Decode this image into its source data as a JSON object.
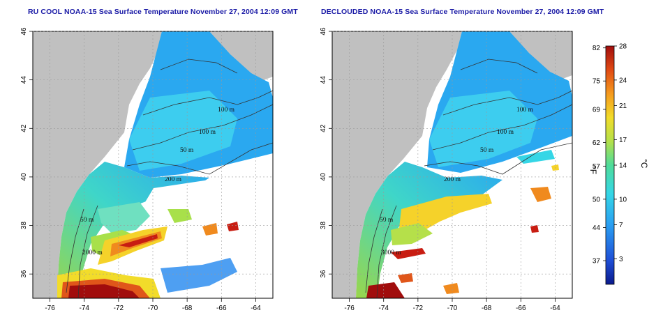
{
  "panels": [
    {
      "id": "left",
      "title": "RU COOL NOAA-15 Sea Surface Temperature November 27, 2004 12:09 GMT",
      "x_ticks": [
        "-76",
        "-74",
        "-72",
        "-70",
        "-68",
        "-66",
        "-64"
      ],
      "y_ticks": [
        "46",
        "44",
        "42",
        "40",
        "38",
        "36"
      ],
      "contour_labels": [
        "100 m",
        "100 m",
        "50 m",
        "200 m",
        "50 m",
        "2000 m"
      ]
    },
    {
      "id": "right",
      "title": "DECLOUDED NOAA-15 Sea Surface Temperature November 27, 2004 12:09 GMT",
      "x_ticks": [
        "-76",
        "-74",
        "-72",
        "-70",
        "-68",
        "-66",
        "-64"
      ],
      "y_ticks": [
        "46",
        "44",
        "42",
        "40",
        "38",
        "36"
      ],
      "contour_labels": [
        "100 m",
        "100 m",
        "50 m",
        "200 m",
        "50 m",
        "3000 m"
      ]
    }
  ],
  "colorbar": {
    "fahrenheit_ticks": [
      "82",
      "75",
      "69",
      "62",
      "57",
      "50",
      "44",
      "37"
    ],
    "celsius_ticks": [
      "28",
      "24",
      "21",
      "17",
      "14",
      "10",
      "7",
      "3"
    ],
    "fahrenheit_unit": "°F",
    "celsius_unit": "°C",
    "gradient_colors": [
      "#0a1a8c",
      "#1f4fd6",
      "#2a9ff2",
      "#35d6e6",
      "#4fdc9a",
      "#b5e04a",
      "#f2dc2a",
      "#f59a1e",
      "#e04a14",
      "#a10d0d"
    ]
  },
  "colors": {
    "land": "#c0c0c0",
    "cloud": "#ffffff",
    "title": "#1a1aa6"
  }
}
